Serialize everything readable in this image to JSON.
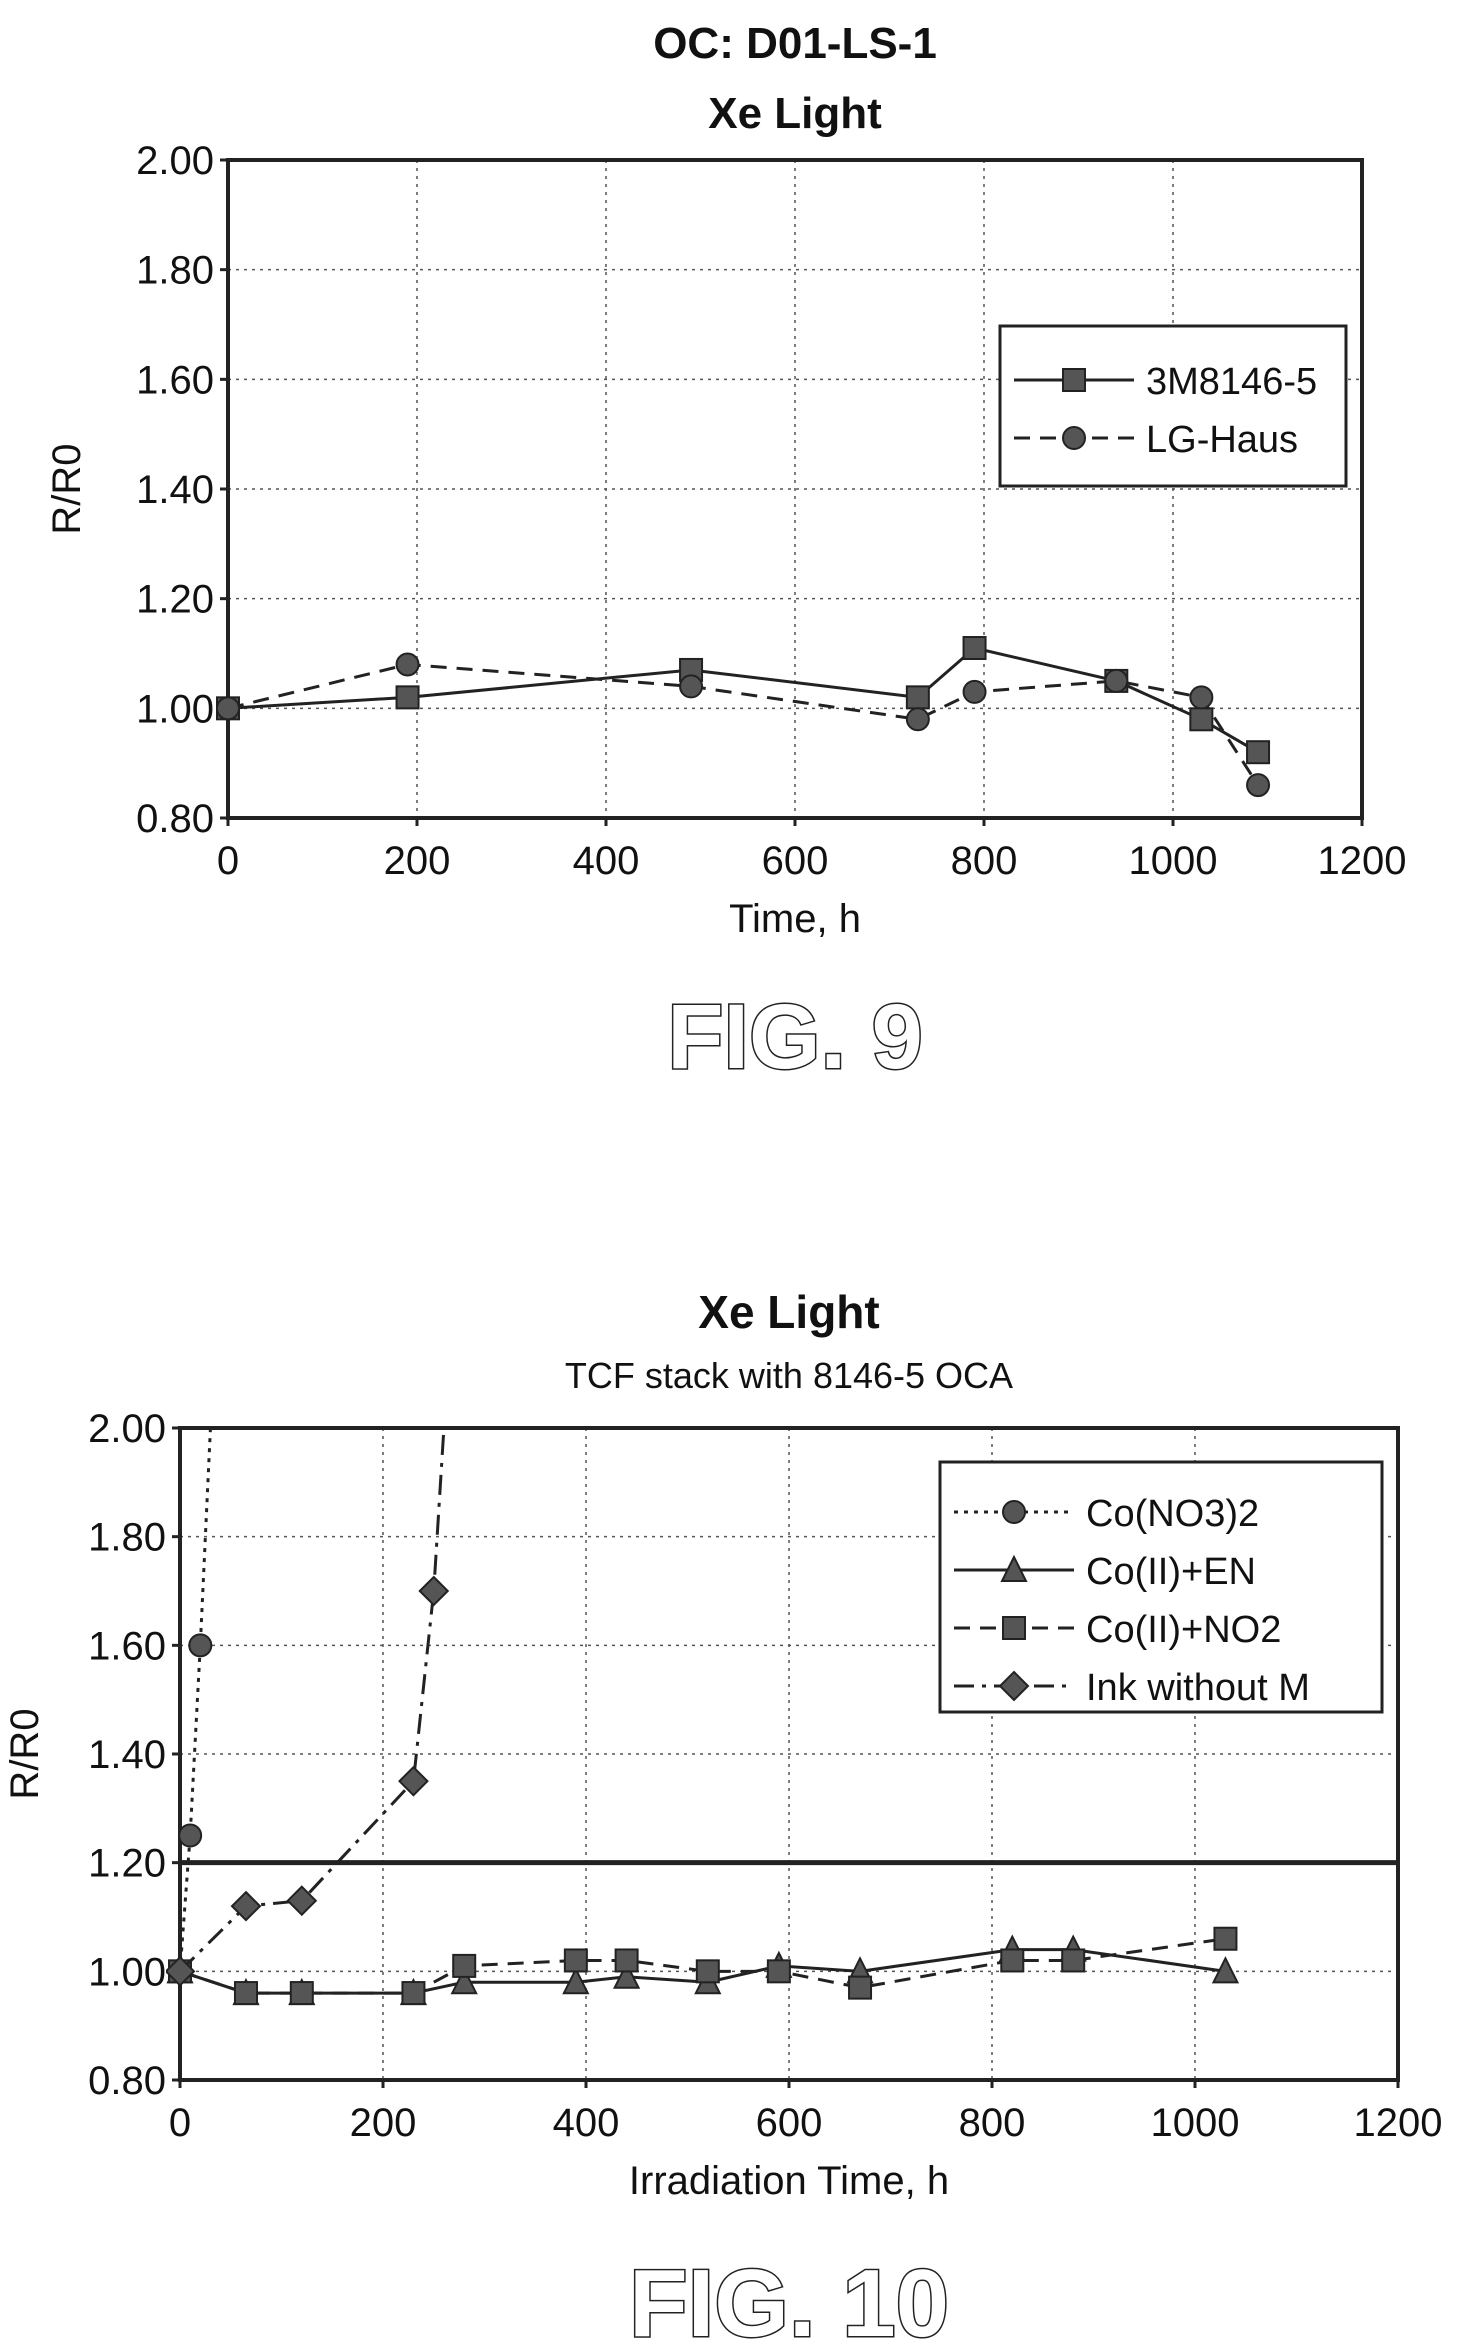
{
  "chart_data": [
    {
      "type": "line",
      "title": "OC: D01-LS-1",
      "subtitle": "Xe Light",
      "xlabel": "Time, h",
      "ylabel": "R/R0",
      "xlim": [
        0,
        1200
      ],
      "ylim": [
        0.8,
        2.0
      ],
      "xticks": [
        "0",
        "200",
        "400",
        "600",
        "800",
        "1000",
        "1200"
      ],
      "yticks": [
        "0.80",
        "1.00",
        "1.20",
        "1.40",
        "1.60",
        "1.80",
        "2.00"
      ],
      "grid": true,
      "legend_position": "top-right",
      "figure_label": "FIG. 9",
      "series": [
        {
          "name": "3M8146-5",
          "style": "solid",
          "marker": "square",
          "points": [
            [
              0,
              1.0
            ],
            [
              190,
              1.02
            ],
            [
              490,
              1.07
            ],
            [
              730,
              1.02
            ],
            [
              790,
              1.11
            ],
            [
              940,
              1.05
            ],
            [
              1030,
              0.98
            ],
            [
              1090,
              0.92
            ]
          ]
        },
        {
          "name": "LG-Haus",
          "style": "dashed",
          "marker": "circle",
          "points": [
            [
              0,
              1.0
            ],
            [
              190,
              1.08
            ],
            [
              490,
              1.04
            ],
            [
              730,
              0.98
            ],
            [
              790,
              1.03
            ],
            [
              940,
              1.05
            ],
            [
              1030,
              1.02
            ],
            [
              1090,
              0.86
            ]
          ]
        }
      ]
    },
    {
      "type": "line",
      "title": "Xe Light",
      "subtitle": "TCF stack with 8146-5 OCA",
      "xlabel": "Irradiation Time, h",
      "ylabel": "R/R0",
      "xlim": [
        0,
        1200
      ],
      "ylim": [
        0.8,
        2.0
      ],
      "xticks": [
        "0",
        "200",
        "400",
        "600",
        "800",
        "1000",
        "1200"
      ],
      "yticks": [
        "0.80",
        "1.00",
        "1.20",
        "1.40",
        "1.60",
        "1.80",
        "2.00"
      ],
      "grid": true,
      "legend_position": "top-right",
      "reference_line_y": 1.2,
      "figure_label": "FIG. 10",
      "series": [
        {
          "name": "Co(NO3)2",
          "style": "dotted",
          "marker": "circle",
          "points": [
            [
              0,
              1.0
            ],
            [
              10,
              1.25
            ],
            [
              20,
              1.6
            ],
            [
              30,
              2.0
            ]
          ]
        },
        {
          "name": "Co(II)+EN",
          "style": "solid",
          "marker": "triangle",
          "points": [
            [
              0,
              1.0
            ],
            [
              65,
              0.96
            ],
            [
              120,
              0.96
            ],
            [
              230,
              0.96
            ],
            [
              280,
              0.98
            ],
            [
              390,
              0.98
            ],
            [
              440,
              0.99
            ],
            [
              520,
              0.98
            ],
            [
              590,
              1.01
            ],
            [
              670,
              1.0
            ],
            [
              820,
              1.04
            ],
            [
              880,
              1.04
            ],
            [
              1030,
              1.0
            ]
          ]
        },
        {
          "name": "Co(II)+NO2",
          "style": "dashed",
          "marker": "square",
          "points": [
            [
              0,
              1.0
            ],
            [
              65,
              0.96
            ],
            [
              120,
              0.96
            ],
            [
              230,
              0.96
            ],
            [
              280,
              1.01
            ],
            [
              390,
              1.02
            ],
            [
              440,
              1.02
            ],
            [
              520,
              1.0
            ],
            [
              590,
              1.0
            ],
            [
              670,
              0.97
            ],
            [
              820,
              1.02
            ],
            [
              880,
              1.02
            ],
            [
              1030,
              1.06
            ]
          ]
        },
        {
          "name": "Ink without M",
          "style": "dashdot",
          "marker": "diamond",
          "points": [
            [
              0,
              1.0
            ],
            [
              65,
              1.12
            ],
            [
              120,
              1.13
            ],
            [
              230,
              1.35
            ],
            [
              250,
              1.7
            ],
            [
              260,
              2.0
            ]
          ]
        }
      ]
    }
  ]
}
